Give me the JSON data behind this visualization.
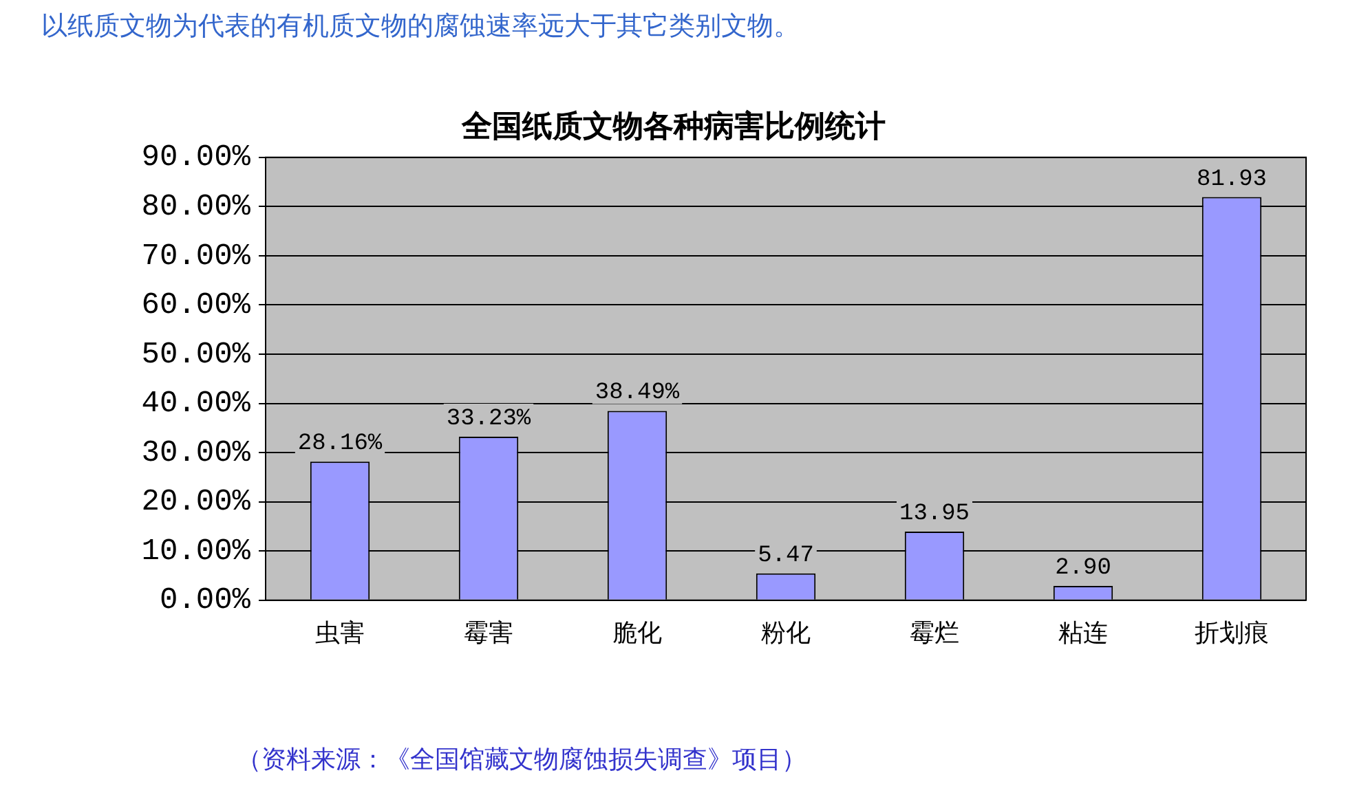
{
  "chart_data": {
    "type": "bar",
    "title": "全国纸质文物各种病害比例统计",
    "categories": [
      "虫害",
      "霉害",
      "脆化",
      "粉化",
      "霉烂",
      "粘连",
      "折划痕"
    ],
    "values": [
      28.16,
      33.23,
      38.49,
      5.47,
      13.95,
      2.9,
      81.93
    ],
    "value_labels": [
      "28.16%",
      "33.23%",
      "38.49%",
      "5.47",
      "13.95",
      "2.90",
      "81.93"
    ],
    "color": "#9999ff",
    "ylim": [
      0,
      90
    ],
    "yticks": [
      {
        "value": 0,
        "label": "0.00%"
      },
      {
        "value": 10,
        "label": "10.00%"
      },
      {
        "value": 20,
        "label": "20.00%"
      },
      {
        "value": 30,
        "label": "30.00%"
      },
      {
        "value": 40,
        "label": "40.00%"
      },
      {
        "value": 50,
        "label": "50.00%"
      },
      {
        "value": 60,
        "label": "60.00%"
      },
      {
        "value": 70,
        "label": "70.00%"
      },
      {
        "value": 80,
        "label": "80.00%"
      },
      {
        "value": 90,
        "label": "90.00%"
      }
    ],
    "grid": "y",
    "annotations": [
      "以纸质文物为代表的有机质文物的腐蚀速率远大于其它类别文物。",
      "（资料来源：《全国馆藏文物腐蚀损失调查》项目）"
    ]
  }
}
